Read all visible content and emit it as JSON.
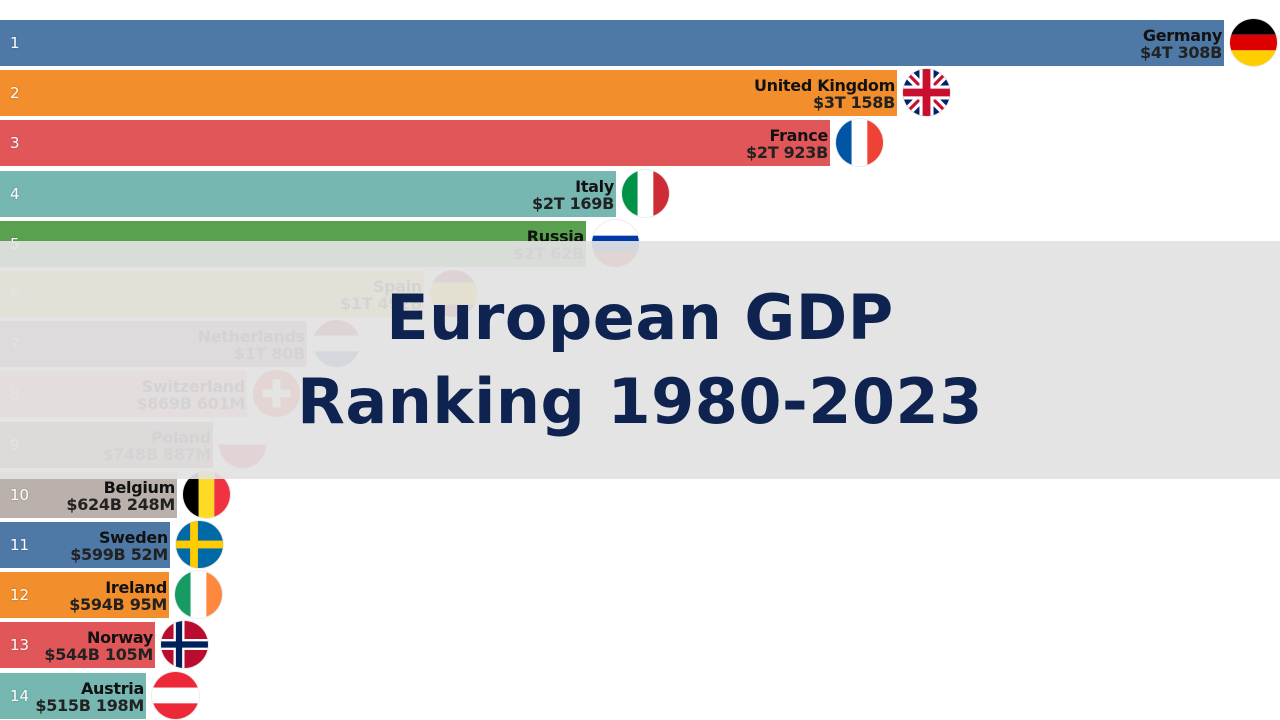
{
  "title": {
    "line1": "European GDP",
    "line2": "Ranking 1980-2023"
  },
  "chart_data": {
    "type": "bar",
    "orientation": "horizontal",
    "sorted": "descending",
    "unit": "USD",
    "title": "European GDP Ranking 1980-2023",
    "bars": [
      {
        "rank": "1",
        "name": "Germany",
        "value_label": "$4T 308B",
        "value": 4308,
        "color": "#4e79a7",
        "flag": "flag-germany"
      },
      {
        "rank": "2",
        "name": "United Kingdom",
        "value_label": "$3T 158B",
        "value": 3158,
        "color": "#f28e2b",
        "flag": "flag-united-kingdom"
      },
      {
        "rank": "3",
        "name": "France",
        "value_label": "$2T 923B",
        "value": 2923,
        "color": "#e15759",
        "flag": "flag-france"
      },
      {
        "rank": "4",
        "name": "Italy",
        "value_label": "$2T 169B",
        "value": 2169,
        "color": "#76b7b2",
        "flag": "flag-italy"
      },
      {
        "rank": "5",
        "name": "Russia",
        "value_label": "$2T 62B",
        "value": 2062,
        "color": "#59a14f",
        "flag": "flag-russia"
      },
      {
        "rank": "6",
        "name": "Spain",
        "value_label": "$1T 492B",
        "value": 1492,
        "color": "#edc948",
        "flag": "flag-spain"
      },
      {
        "rank": "7",
        "name": "Netherlands",
        "value_label": "$1T 80B",
        "value": 1080,
        "color": "#b07aa1",
        "flag": "flag-netherlands"
      },
      {
        "rank": "8",
        "name": "Switzerland",
        "value_label": "$869B 601M",
        "value": 869.6,
        "color": "#ff9da7",
        "flag": "flag-switzerland"
      },
      {
        "rank": "9",
        "name": "Poland",
        "value_label": "$748B 887M",
        "value": 748.9,
        "color": "#9c755f",
        "flag": "flag-poland"
      },
      {
        "rank": "10",
        "name": "Belgium",
        "value_label": "$624B 248M",
        "value": 624.2,
        "color": "#bab0ac",
        "flag": "flag-belgium"
      },
      {
        "rank": "11",
        "name": "Sweden",
        "value_label": "$599B 52M",
        "value": 599.1,
        "color": "#4e79a7",
        "flag": "flag-sweden"
      },
      {
        "rank": "12",
        "name": "Ireland",
        "value_label": "$594B 95M",
        "value": 594.1,
        "color": "#f28e2b",
        "flag": "flag-ireland"
      },
      {
        "rank": "13",
        "name": "Norway",
        "value_label": "$544B 105M",
        "value": 544.1,
        "color": "#e15759",
        "flag": "flag-norway"
      },
      {
        "rank": "14",
        "name": "Austria",
        "value_label": "$515B 198M",
        "value": 515.2,
        "color": "#76b7b2",
        "flag": "flag-austria"
      }
    ]
  }
}
